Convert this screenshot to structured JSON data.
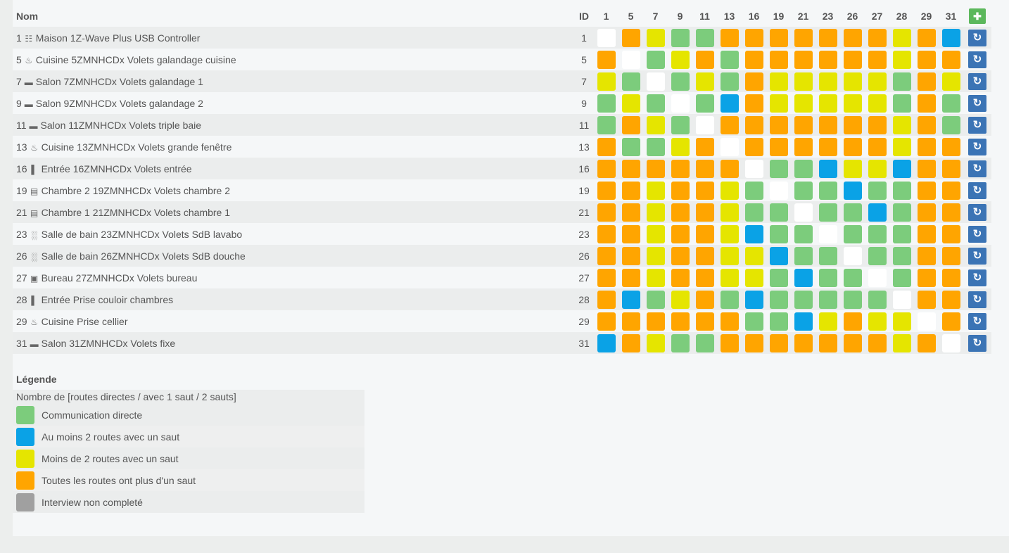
{
  "header": {
    "name": "Nom",
    "id": "ID",
    "columns": [
      "1",
      "5",
      "7",
      "9",
      "11",
      "13",
      "16",
      "19",
      "21",
      "23",
      "26",
      "27",
      "28",
      "29",
      "31"
    ]
  },
  "status_colors": {
    "D": "#7ccc7c",
    "B": "#0aa2e6",
    "Y": "#e5e500",
    "O": "#ffa500",
    "W": "#ffffff",
    "G": "#a0a0a0"
  },
  "rows": [
    {
      "num": "1",
      "icon": "server-icon",
      "name": "Maison 1Z-Wave Plus USB Controller",
      "id": "1",
      "cells": "WOYDDOOOOOOOYOB"
    },
    {
      "num": "5",
      "icon": "kitchen-icon",
      "name": "Cuisine 5ZMNHCDx Volets galandage cuisine",
      "id": "5",
      "cells": "OWDYODOOOOOOYOO"
    },
    {
      "num": "7",
      "icon": "sofa-icon",
      "name": "Salon 7ZMNHCDx Volets galandage 1",
      "id": "7",
      "cells": "YDWDYDOYYYYYDOY"
    },
    {
      "num": "9",
      "icon": "sofa-icon",
      "name": "Salon 9ZMNHCDx Volets galandage 2",
      "id": "9",
      "cells": "DYDWDBOYYYYYDOD"
    },
    {
      "num": "11",
      "icon": "sofa-icon",
      "name": "Salon 11ZMNHCDx Volets triple baie",
      "id": "11",
      "cells": "DOYDWOOOOOOOYOD"
    },
    {
      "num": "13",
      "icon": "kitchen-icon",
      "name": "Cuisine 13ZMNHCDx Volets grande fenêtre",
      "id": "13",
      "cells": "ODDYOWOOOOOOYOO"
    },
    {
      "num": "16",
      "icon": "door-icon",
      "name": "Entrée 16ZMNHCDx Volets entrée",
      "id": "16",
      "cells": "OOOOOOWDDBYYBOO"
    },
    {
      "num": "19",
      "icon": "bed-icon",
      "name": "Chambre 2 19ZMNHCDx Volets chambre 2",
      "id": "19",
      "cells": "OOYOOYDWDDBDDOO"
    },
    {
      "num": "21",
      "icon": "bed-icon",
      "name": "Chambre 1 21ZMNHCDx Volets chambre 1",
      "id": "21",
      "cells": "OOYOOYDDWDDBDOO"
    },
    {
      "num": "23",
      "icon": "bathroom-icon",
      "name": "Salle de bain 23ZMNHCDx Volets SdB lavabo",
      "id": "23",
      "cells": "OOYOOYBDDWDDDOO"
    },
    {
      "num": "26",
      "icon": "bathroom-icon",
      "name": "Salle de bain 26ZMNHCDx Volets SdB douche",
      "id": "26",
      "cells": "OOYOOYYBDDWDDOO"
    },
    {
      "num": "27",
      "icon": "desk-icon",
      "name": "Bureau 27ZMNHCDx Volets bureau",
      "id": "27",
      "cells": "OOYOOYYDBDDWDOO"
    },
    {
      "num": "28",
      "icon": "door-icon",
      "name": "Entrée Prise couloir chambres",
      "id": "28",
      "cells": "OBDYODBDDDDDWOO"
    },
    {
      "num": "29",
      "icon": "kitchen-icon",
      "name": "Cuisine Prise cellier",
      "id": "29",
      "cells": "OOOOOODDBYOYYWO"
    },
    {
      "num": "31",
      "icon": "sofa-icon",
      "name": "Salon 31ZMNHCDx Volets fixe",
      "id": "31",
      "cells": "BOYDDOOOOOOOYOW"
    }
  ],
  "legend": {
    "title": "Légende",
    "subtitle": "Nombre de [routes directes / avec 1 saut / 2 sauts]",
    "items": [
      {
        "key": "D",
        "label": "Communication directe"
      },
      {
        "key": "B",
        "label": "Au moins 2 routes avec un saut"
      },
      {
        "key": "Y",
        "label": "Moins de 2 routes avec un saut"
      },
      {
        "key": "O",
        "label": "Toutes les routes ont plus d'un saut"
      },
      {
        "key": "G",
        "label": "Interview non completé"
      }
    ]
  },
  "icons": {
    "refresh": "refresh-icon",
    "heal": "medkit-icon"
  }
}
